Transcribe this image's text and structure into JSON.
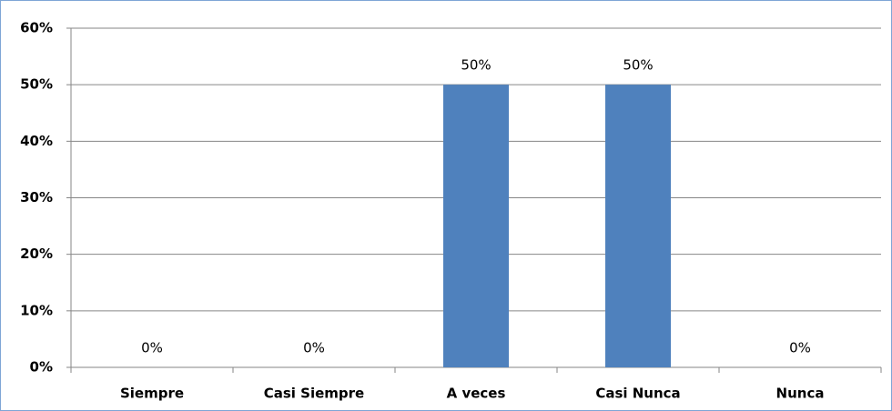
{
  "chart_data": {
    "type": "bar",
    "categories": [
      "Siempre",
      "Casi Siempre",
      "A veces",
      "Casi Nunca",
      "Nunca"
    ],
    "values": [
      0,
      0,
      50,
      50,
      0
    ],
    "value_labels": [
      "0%",
      "0%",
      "50%",
      "50%",
      "0%"
    ],
    "color": "#4f81bd",
    "ylim": [
      0,
      60
    ],
    "yticks": [
      {
        "value": 0,
        "label": "0%"
      },
      {
        "value": 10,
        "label": "10%"
      },
      {
        "value": 20,
        "label": "20%"
      },
      {
        "value": 30,
        "label": "30%"
      },
      {
        "value": 40,
        "label": "40%"
      },
      {
        "value": 50,
        "label": "50%"
      },
      {
        "value": 60,
        "label": "60%"
      }
    ],
    "grid": true
  }
}
